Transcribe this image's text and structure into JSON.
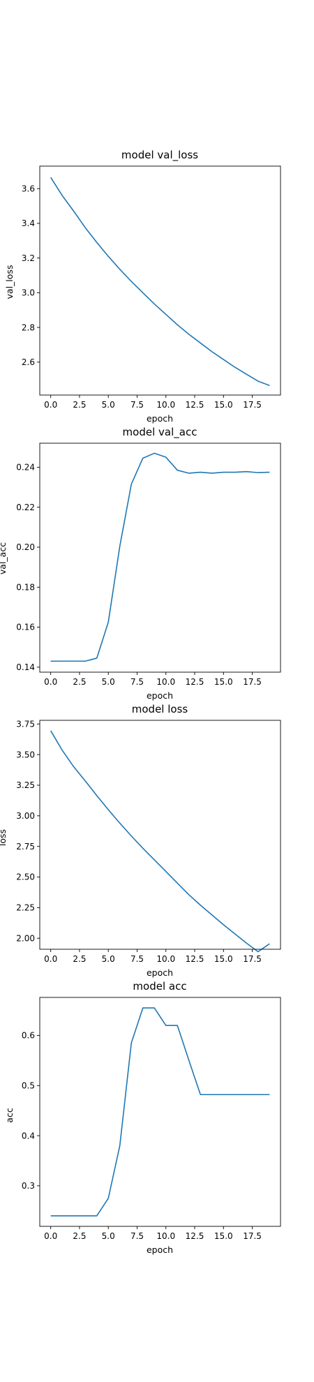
{
  "chart_data": [
    {
      "type": "line",
      "title": "model val_loss",
      "xlabel": "epoch",
      "ylabel": "val_loss",
      "xlim": [
        -0.95,
        19.95
      ],
      "ylim": [
        2.41,
        3.73
      ],
      "xticks": [
        0.0,
        2.5,
        5.0,
        7.5,
        10.0,
        12.5,
        15.0,
        17.5
      ],
      "yticks": [
        2.6,
        2.8,
        3.0,
        3.2,
        3.4,
        3.6
      ],
      "grid": false,
      "legend": false,
      "x": [
        0,
        1,
        2,
        3,
        4,
        5,
        6,
        7,
        8,
        9,
        10,
        11,
        12,
        13,
        14,
        15,
        16,
        17,
        18,
        19
      ],
      "series": [
        {
          "color": "#1f77b4",
          "values": [
            3.665,
            3.56,
            3.47,
            3.375,
            3.29,
            3.21,
            3.135,
            3.065,
            3.0,
            2.935,
            2.875,
            2.815,
            2.76,
            2.71,
            2.66,
            2.615,
            2.57,
            2.53,
            2.49,
            2.465
          ]
        }
      ]
    },
    {
      "type": "line",
      "title": "model val_acc",
      "xlabel": "epoch",
      "ylabel": "val_acc",
      "xlim": [
        -0.95,
        19.95
      ],
      "ylim": [
        0.1375,
        0.252
      ],
      "xticks": [
        0.0,
        2.5,
        5.0,
        7.5,
        10.0,
        12.5,
        15.0,
        17.5
      ],
      "yticks": [
        0.14,
        0.16,
        0.18,
        0.2,
        0.22,
        0.24
      ],
      "grid": false,
      "legend": false,
      "x": [
        0,
        1,
        2,
        3,
        4,
        5,
        6,
        7,
        8,
        9,
        10,
        11,
        12,
        13,
        14,
        15,
        16,
        17,
        18,
        19
      ],
      "series": [
        {
          "color": "#1f77b4",
          "values": [
            0.143,
            0.143,
            0.143,
            0.143,
            0.1445,
            0.1625,
            0.2005,
            0.2315,
            0.2445,
            0.247,
            0.245,
            0.2385,
            0.237,
            0.2375,
            0.237,
            0.2375,
            0.2375,
            0.2378,
            0.2373,
            0.2375
          ]
        }
      ]
    },
    {
      "type": "line",
      "title": "model loss",
      "xlabel": "epoch",
      "ylabel": "loss",
      "xlim": [
        -0.95,
        19.95
      ],
      "ylim": [
        1.91,
        3.78
      ],
      "xticks": [
        0.0,
        2.5,
        5.0,
        7.5,
        10.0,
        12.5,
        15.0,
        17.5
      ],
      "yticks": [
        2.0,
        2.25,
        2.5,
        2.75,
        3.0,
        3.25,
        3.5,
        3.75
      ],
      "grid": false,
      "legend": false,
      "x": [
        0,
        1,
        2,
        3,
        4,
        5,
        6,
        7,
        8,
        9,
        10,
        11,
        12,
        13,
        14,
        15,
        16,
        17,
        18,
        19
      ],
      "series": [
        {
          "color": "#1f77b4",
          "values": [
            3.695,
            3.535,
            3.4,
            3.285,
            3.165,
            3.05,
            2.94,
            2.835,
            2.735,
            2.64,
            2.545,
            2.45,
            2.355,
            2.27,
            2.19,
            2.11,
            2.035,
            1.96,
            1.89,
            1.955
          ]
        }
      ]
    },
    {
      "type": "line",
      "title": "model acc",
      "xlabel": "epoch",
      "ylabel": "acc",
      "xlim": [
        -0.95,
        19.95
      ],
      "ylim": [
        0.219,
        0.676
      ],
      "xticks": [
        0.0,
        2.5,
        5.0,
        7.5,
        10.0,
        12.5,
        15.0,
        17.5
      ],
      "yticks": [
        0.3,
        0.4,
        0.5,
        0.6
      ],
      "grid": false,
      "legend": false,
      "x": [
        0,
        1,
        2,
        3,
        4,
        5,
        6,
        7,
        8,
        9,
        10,
        11,
        12,
        13,
        14,
        15,
        16,
        17,
        18,
        19
      ],
      "series": [
        {
          "color": "#1f77b4",
          "values": [
            0.24,
            0.24,
            0.24,
            0.24,
            0.24,
            0.275,
            0.38,
            0.585,
            0.655,
            0.655,
            0.62,
            0.62,
            0.55,
            0.482,
            0.482,
            0.482,
            0.482,
            0.482,
            0.482,
            0.482
          ]
        }
      ]
    }
  ]
}
